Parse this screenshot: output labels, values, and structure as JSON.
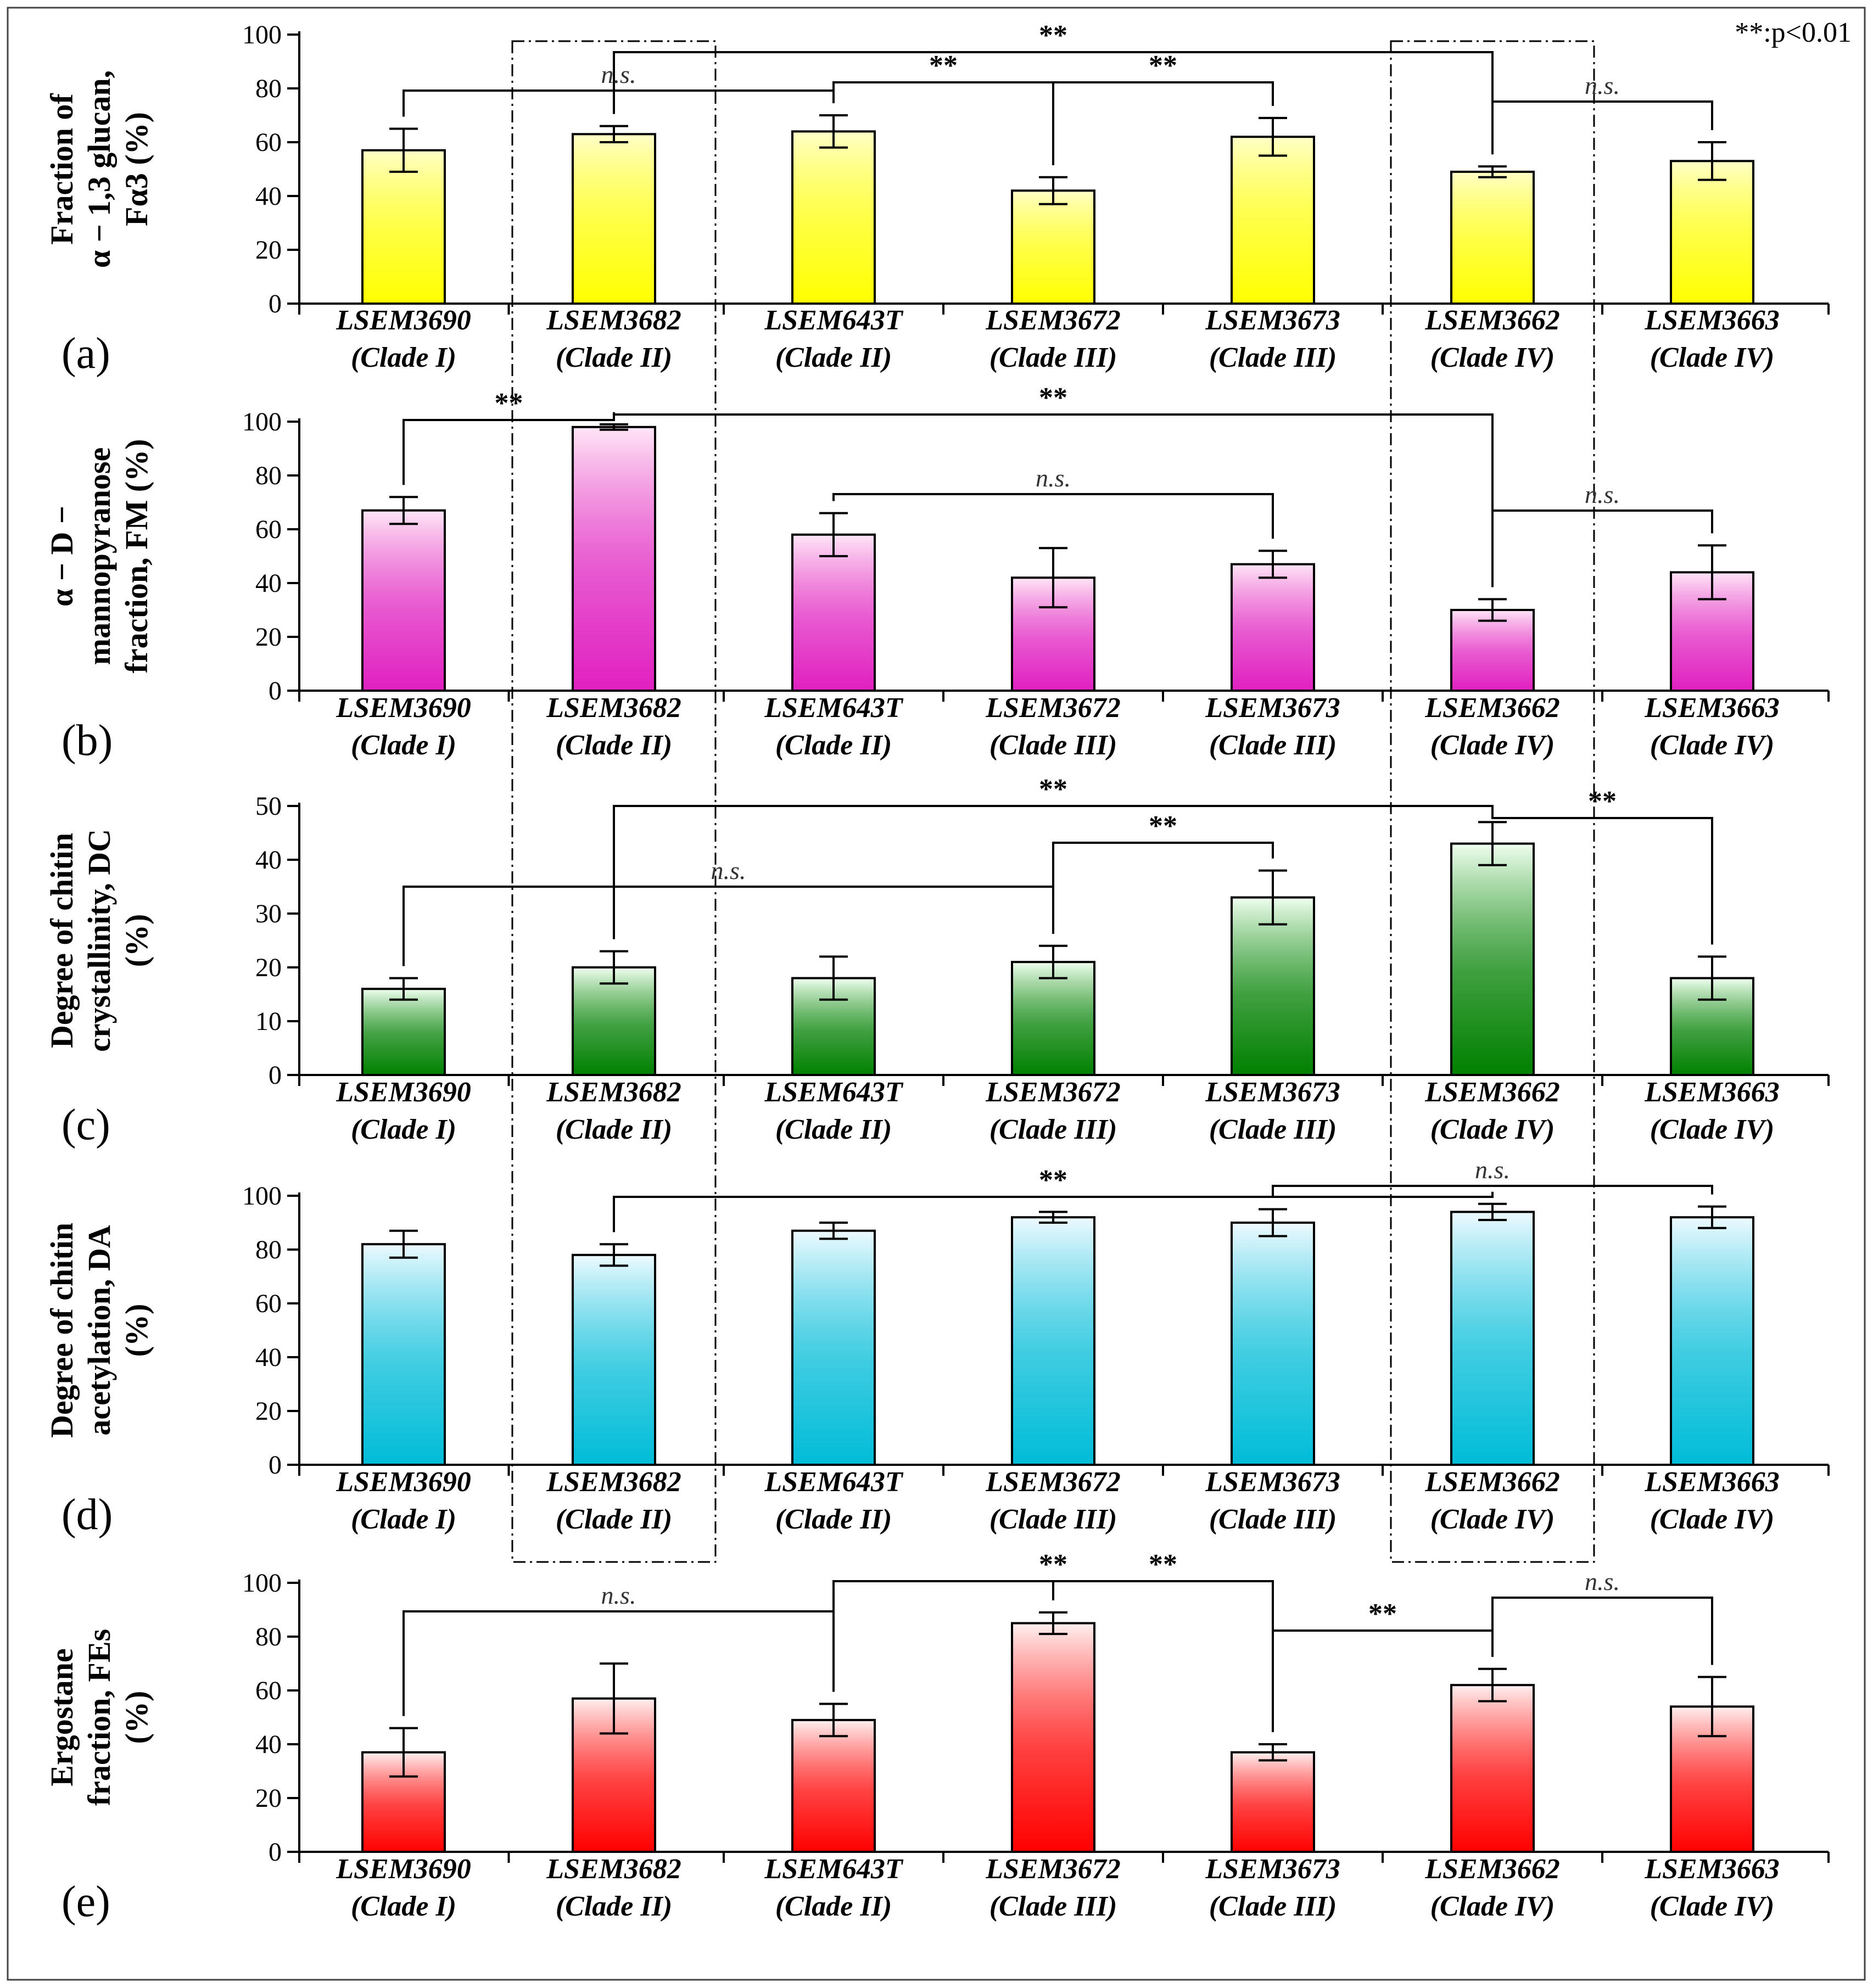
{
  "legend": {
    "label": "**:p<0.01"
  },
  "panels": [
    {
      "id": "a",
      "label": "(a)",
      "ylabel_lines": [
        "Fraction of",
        "α − 1,3 glucan,",
        "Fα3 (%)"
      ]
    },
    {
      "id": "b",
      "label": "(b)",
      "ylabel_lines": [
        "α − D −",
        "mannopyranose",
        "fraction, FM (%)"
      ]
    },
    {
      "id": "c",
      "label": "(c)",
      "ylabel_lines": [
        "Degree of chitin",
        "crystallinity, DC",
        "(%)"
      ]
    },
    {
      "id": "d",
      "label": "(d)",
      "ylabel_lines": [
        "Degree of chitin",
        "acetylation, DA",
        "(%)"
      ]
    },
    {
      "id": "e",
      "label": "(e)",
      "ylabel_lines": [
        "Ergostane",
        "fraction, FEs",
        "(%)"
      ]
    }
  ],
  "chart_data": [
    {
      "type": "bar",
      "panel": "a",
      "title": "",
      "ylabel": "Fraction of α − 1,3 glucan, Fα3 (%)",
      "categories": [
        "LSEM3690 (Clade I)",
        "LSEM3682 (Clade II)",
        "LSEM643T (Clade II)",
        "LSEM3672 (Clade III)",
        "LSEM3673 (Clade III)",
        "LSEM3662 (Clade IV)",
        "LSEM3663 (Clade IV)"
      ],
      "category_names": [
        "LSEM3690",
        "LSEM3682",
        "LSEM643T",
        "LSEM3672",
        "LSEM3673",
        "LSEM3662",
        "LSEM3663"
      ],
      "category_clades": [
        "(Clade I)",
        "(Clade II)",
        "(Clade II)",
        "(Clade III)",
        "(Clade III)",
        "(Clade IV)",
        "(Clade IV)"
      ],
      "values": [
        57,
        63,
        64,
        42,
        62,
        49,
        53
      ],
      "errors": [
        8,
        3,
        6,
        5,
        7,
        2,
        7
      ],
      "ylim": [
        0,
        100
      ],
      "yticks": [
        0,
        20,
        40,
        60,
        80,
        100
      ],
      "color_top": "#ffffc8",
      "color_bottom": "#ffff00",
      "annotations": [
        {
          "label": "**",
          "note": "LSEM3682 vs LSEM3662"
        },
        {
          "label": "n.s.",
          "note": "LSEM3690 vs LSEM643T"
        },
        {
          "label": "**",
          "note": "LSEM643T vs LSEM3672"
        },
        {
          "label": "**",
          "note": "LSEM3672 vs LSEM3673"
        },
        {
          "label": "n.s.",
          "note": "LSEM3662 vs LSEM3663"
        }
      ]
    },
    {
      "type": "bar",
      "panel": "b",
      "title": "",
      "ylabel": "α − D − mannopyranose fraction, FM (%)",
      "categories": [
        "LSEM3690 (Clade I)",
        "LSEM3682 (Clade II)",
        "LSEM643T (Clade II)",
        "LSEM3672 (Clade III)",
        "LSEM3673 (Clade III)",
        "LSEM3662 (Clade IV)",
        "LSEM3663 (Clade IV)"
      ],
      "category_names": [
        "LSEM3690",
        "LSEM3682",
        "LSEM643T",
        "LSEM3672",
        "LSEM3673",
        "LSEM3662",
        "LSEM3663"
      ],
      "category_clades": [
        "(Clade I)",
        "(Clade II)",
        "(Clade II)",
        "(Clade III)",
        "(Clade III)",
        "(Clade IV)",
        "(Clade IV)"
      ],
      "values": [
        67,
        98,
        58,
        42,
        47,
        30,
        44
      ],
      "errors": [
        5,
        1,
        8,
        11,
        5,
        4,
        10
      ],
      "ylim": [
        0,
        100
      ],
      "yticks": [
        0,
        20,
        40,
        60,
        80,
        100
      ],
      "color_top": "#ffe6f6",
      "color_bottom": "#e020c0",
      "annotations": [
        {
          "label": "**",
          "note": "LSEM3690 vs LSEM3682"
        },
        {
          "label": "**",
          "note": "LSEM3682 vs LSEM643T/LSEM3673/LSEM3662"
        },
        {
          "label": "n.s.",
          "note": "LSEM643T vs LSEM3672 vs LSEM3673"
        },
        {
          "label": "n.s.",
          "note": "LSEM3662 vs LSEM3663"
        }
      ]
    },
    {
      "type": "bar",
      "panel": "c",
      "title": "",
      "ylabel": "Degree of chitin crystallinity, DC (%)",
      "categories": [
        "LSEM3690 (Clade I)",
        "LSEM3682 (Clade II)",
        "LSEM643T (Clade II)",
        "LSEM3672 (Clade III)",
        "LSEM3673 (Clade III)",
        "LSEM3662 (Clade IV)",
        "LSEM3663 (Clade IV)"
      ],
      "category_names": [
        "LSEM3690",
        "LSEM3682",
        "LSEM643T",
        "LSEM3672",
        "LSEM3673",
        "LSEM3662",
        "LSEM3663"
      ],
      "category_clades": [
        "(Clade I)",
        "(Clade II)",
        "(Clade II)",
        "(Clade III)",
        "(Clade III)",
        "(Clade IV)",
        "(Clade IV)"
      ],
      "values": [
        16,
        20,
        18,
        21,
        33,
        43,
        18
      ],
      "errors": [
        2,
        3,
        4,
        3,
        5,
        4,
        4
      ],
      "ylim": [
        0,
        50
      ],
      "yticks": [
        0,
        10,
        20,
        30,
        40,
        50
      ],
      "color_top": "#f0fff0",
      "color_bottom": "#008000",
      "annotations": [
        {
          "label": "**",
          "note": "LSEM3682 vs LSEM3662"
        },
        {
          "label": "**",
          "note": "LSEM3662 vs LSEM3663"
        },
        {
          "label": "**",
          "note": "LSEM3672 vs LSEM3673"
        },
        {
          "label": "n.s.",
          "note": "LSEM3690 vs LSEM3682 vs LSEM643T vs LSEM3672"
        }
      ]
    },
    {
      "type": "bar",
      "panel": "d",
      "title": "",
      "ylabel": "Degree of chitin acetylation, DA (%)",
      "categories": [
        "LSEM3690 (Clade I)",
        "LSEM3682 (Clade II)",
        "LSEM643T (Clade II)",
        "LSEM3672 (Clade III)",
        "LSEM3673 (Clade III)",
        "LSEM3662 (Clade IV)",
        "LSEM3663 (Clade IV)"
      ],
      "category_names": [
        "LSEM3690",
        "LSEM3682",
        "LSEM643T",
        "LSEM3672",
        "LSEM3673",
        "LSEM3662",
        "LSEM3663"
      ],
      "category_clades": [
        "(Clade I)",
        "(Clade II)",
        "(Clade II)",
        "(Clade III)",
        "(Clade III)",
        "(Clade IV)",
        "(Clade IV)"
      ],
      "values": [
        82,
        78,
        87,
        92,
        90,
        94,
        92
      ],
      "errors": [
        5,
        4,
        3,
        2,
        5,
        3,
        4
      ],
      "ylim": [
        0,
        100
      ],
      "yticks": [
        0,
        20,
        40,
        60,
        80,
        100
      ],
      "color_top": "#eefaff",
      "color_bottom": "#00bcd8",
      "annotations": [
        {
          "label": "**",
          "note": "LSEM3682 vs LSEM3662"
        },
        {
          "label": "n.s.",
          "note": "LSEM3673 vs LSEM3662 vs LSEM3663"
        }
      ]
    },
    {
      "type": "bar",
      "panel": "e",
      "title": "",
      "ylabel": "Ergostane fraction, FEs (%)",
      "categories": [
        "LSEM3690 (Clade I)",
        "LSEM3682 (Clade II)",
        "LSEM643T (Clade II)",
        "LSEM3672 (Clade III)",
        "LSEM3673 (Clade III)",
        "LSEM3662 (Clade IV)",
        "LSEM3663 (Clade IV)"
      ],
      "category_names": [
        "LSEM3690",
        "LSEM3682",
        "LSEM643T",
        "LSEM3672",
        "LSEM3673",
        "LSEM3662",
        "LSEM3663"
      ],
      "category_clades": [
        "(Clade I)",
        "(Clade II)",
        "(Clade II)",
        "(Clade III)",
        "(Clade III)",
        "(Clade IV)",
        "(Clade IV)"
      ],
      "values": [
        37,
        57,
        49,
        85,
        37,
        62,
        54
      ],
      "errors": [
        9,
        13,
        6,
        4,
        3,
        6,
        11
      ],
      "ylim": [
        0,
        100
      ],
      "yticks": [
        0,
        20,
        40,
        60,
        80,
        100
      ],
      "color_top": "#fff0f0",
      "color_bottom": "#ff0000",
      "annotations": [
        {
          "label": "n.s.",
          "note": "LSEM3690 vs LSEM3682 vs LSEM643T"
        },
        {
          "label": "**",
          "note": "LSEM643T vs LSEM3672"
        },
        {
          "label": "**",
          "note": "LSEM3672 vs LSEM3673"
        },
        {
          "label": "**",
          "note": "LSEM3673 vs LSEM3662"
        },
        {
          "label": "n.s.",
          "note": "LSEM3662 vs LSEM3663"
        }
      ]
    }
  ]
}
